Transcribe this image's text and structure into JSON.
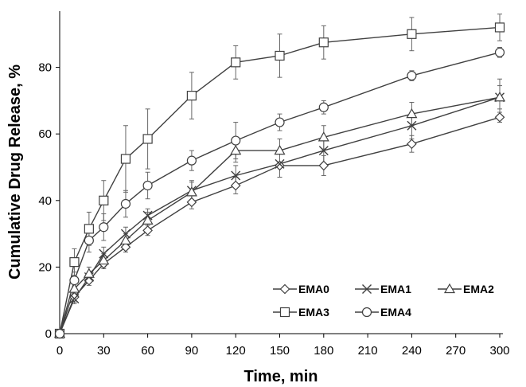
{
  "chart_data": {
    "type": "line",
    "xlabel": "Time, min",
    "ylabel": "Cumulative Drug Release, %",
    "xlim": [
      0,
      300
    ],
    "ylim": [
      0,
      95
    ],
    "xticks": [
      0,
      30,
      60,
      90,
      120,
      150,
      180,
      210,
      240,
      270,
      300
    ],
    "yticks": [
      0,
      20,
      40,
      60,
      80
    ],
    "grid": false,
    "legend_position": "bottom-right",
    "line_color": "#404040",
    "series": [
      {
        "name": "EMA0",
        "marker": "diamond",
        "x": [
          0,
          10,
          20,
          30,
          45,
          60,
          90,
          120,
          150,
          180,
          240,
          300
        ],
        "y": [
          0,
          11,
          16,
          21,
          26,
          31,
          39.5,
          44.5,
          50.5,
          50.5,
          57,
          65
        ],
        "err": [
          0,
          1.5,
          1.5,
          1.5,
          1.5,
          1.5,
          2,
          2.5,
          3.5,
          3,
          2.5,
          1.5
        ]
      },
      {
        "name": "EMA1",
        "marker": "x",
        "x": [
          0,
          10,
          20,
          30,
          45,
          60,
          90,
          120,
          150,
          180,
          240,
          300
        ],
        "y": [
          0,
          10.5,
          17,
          24,
          30,
          35.5,
          43,
          47.5,
          51,
          55,
          62.5,
          71
        ],
        "err": [
          0,
          1.5,
          1.5,
          2,
          2,
          2,
          3,
          3,
          4,
          4,
          4,
          5.5
        ]
      },
      {
        "name": "EMA2",
        "marker": "triangle",
        "x": [
          0,
          10,
          20,
          30,
          45,
          60,
          90,
          120,
          150,
          180,
          240,
          300
        ],
        "y": [
          0,
          13.5,
          18,
          22,
          28,
          34,
          42.5,
          55,
          55,
          59,
          66,
          71
        ],
        "err": [
          0,
          2,
          2,
          2,
          2,
          2.5,
          3,
          3.5,
          3.5,
          3.5,
          3.5,
          3.5
        ]
      },
      {
        "name": "EMA3",
        "marker": "square",
        "x": [
          0,
          10,
          20,
          30,
          45,
          60,
          90,
          120,
          150,
          180,
          240,
          300
        ],
        "y": [
          0,
          21.5,
          31.5,
          40,
          52.5,
          58.5,
          71.5,
          81.5,
          83.5,
          87.5,
          90,
          92
        ],
        "err": [
          0,
          4,
          5,
          6,
          10,
          9,
          7,
          5,
          6.5,
          5,
          5,
          4
        ]
      },
      {
        "name": "EMA4",
        "marker": "circle",
        "x": [
          0,
          10,
          20,
          30,
          45,
          60,
          90,
          120,
          150,
          180,
          240,
          300
        ],
        "y": [
          0,
          16,
          28,
          32,
          39,
          44.5,
          52,
          58,
          63.5,
          68,
          77.5,
          84.5
        ],
        "err": [
          0,
          2.5,
          3.5,
          4,
          4,
          4,
          3,
          5.5,
          2.5,
          2,
          1.5,
          1.5
        ]
      }
    ]
  }
}
